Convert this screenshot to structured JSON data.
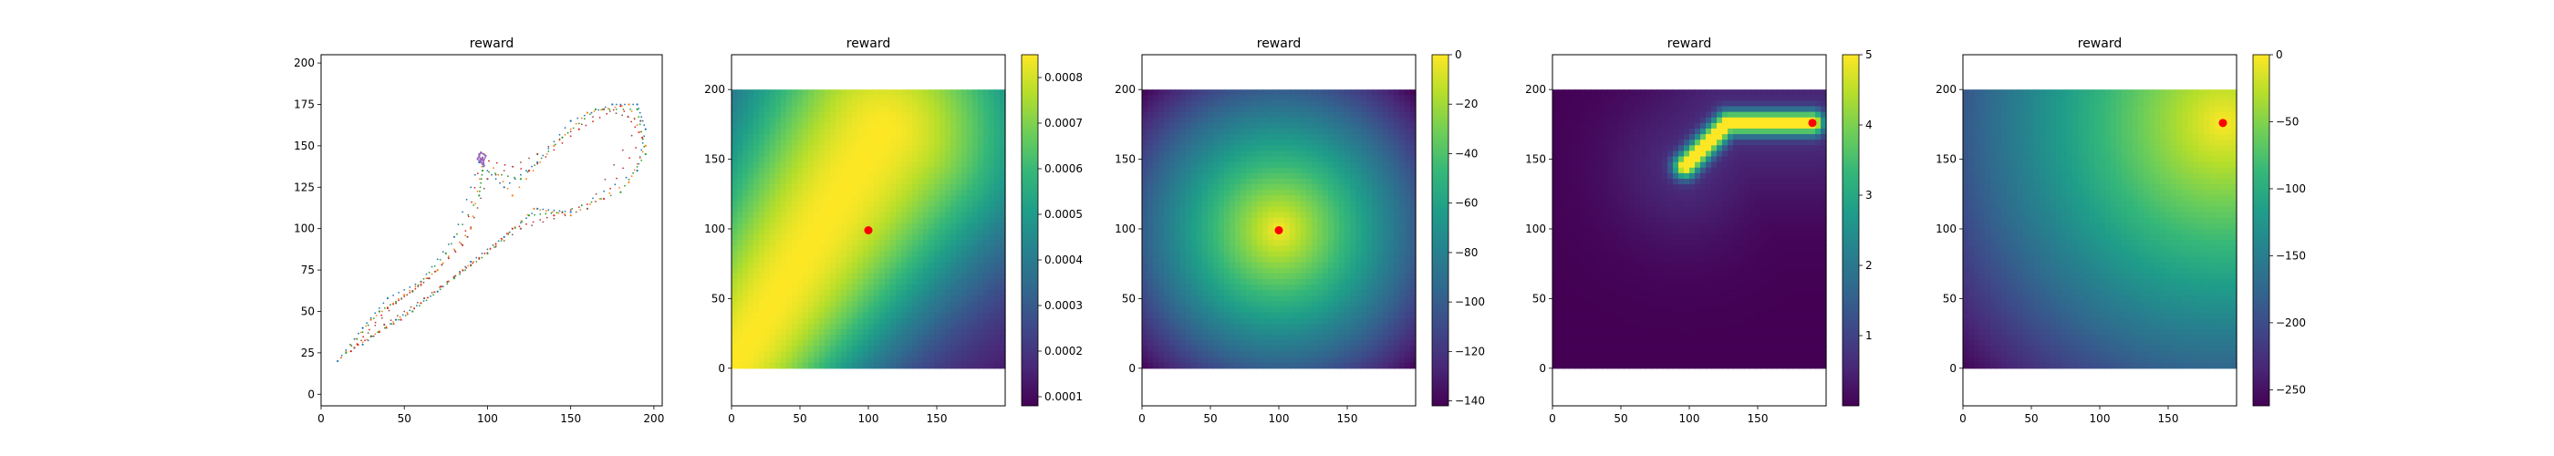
{
  "figure": {
    "background": "#ffffff"
  },
  "chart_data": [
    {
      "type": "scatter",
      "title": "reward",
      "xlim": [
        0,
        205
      ],
      "ylim": [
        -7,
        205
      ],
      "xticks": [
        0,
        50,
        100,
        150,
        200
      ],
      "yticks": [
        0,
        25,
        50,
        75,
        100,
        125,
        150,
        175,
        200
      ],
      "colorbar": null,
      "series": [
        {
          "color": "#1f77b4",
          "points": [
            [
              10,
              20
            ],
            [
              25,
              40
            ],
            [
              40,
              58
            ],
            [
              60,
              68
            ],
            [
              80,
              95
            ],
            [
              95,
              140
            ],
            [
              110,
              125
            ],
            [
              130,
              140
            ],
            [
              150,
              165
            ],
            [
              175,
              175
            ],
            [
              190,
              175
            ],
            [
              195,
              160
            ],
            [
              190,
              135
            ],
            [
              150,
              110
            ],
            [
              130,
              112
            ],
            [
              110,
              95
            ],
            [
              90,
              80
            ],
            [
              70,
              62
            ],
            [
              45,
              45
            ],
            [
              25,
              30
            ]
          ]
        },
        {
          "color": "#ff7f0e",
          "points": [
            [
              12,
              22
            ],
            [
              30,
              45
            ],
            [
              50,
              60
            ],
            [
              70,
              75
            ],
            [
              90,
              100
            ],
            [
              98,
              145
            ],
            [
              115,
              120
            ],
            [
              140,
              150
            ],
            [
              160,
              170
            ],
            [
              185,
              175
            ],
            [
              195,
              150
            ],
            [
              185,
              128
            ],
            [
              150,
              108
            ],
            [
              128,
              112
            ],
            [
              105,
              90
            ],
            [
              85,
              75
            ],
            [
              60,
              55
            ],
            [
              35,
              38
            ],
            [
              20,
              28
            ]
          ]
        },
        {
          "color": "#2ca02c",
          "points": [
            [
              15,
              25
            ],
            [
              35,
              50
            ],
            [
              55,
              62
            ],
            [
              75,
              85
            ],
            [
              95,
              120
            ],
            [
              97,
              135
            ],
            [
              120,
              130
            ],
            [
              145,
              155
            ],
            [
              165,
              172
            ],
            [
              190,
              172
            ],
            [
              195,
              145
            ],
            [
              180,
              122
            ],
            [
              145,
              110
            ],
            [
              125,
              108
            ],
            [
              100,
              85
            ],
            [
              80,
              70
            ],
            [
              55,
              50
            ],
            [
              30,
              35
            ]
          ]
        },
        {
          "color": "#d62728",
          "points": [
            [
              18,
              26
            ],
            [
              40,
              52
            ],
            [
              60,
              66
            ],
            [
              85,
              90
            ],
            [
              96,
              142
            ],
            [
              125,
              135
            ],
            [
              155,
              160
            ],
            [
              180,
              174
            ],
            [
              193,
              155
            ],
            [
              170,
              118
            ],
            [
              140,
              108
            ],
            [
              115,
              100
            ],
            [
              95,
              82
            ],
            [
              72,
              65
            ],
            [
              48,
              45
            ],
            [
              22,
              30
            ]
          ]
        },
        {
          "color": "#9467bd",
          "points": [
            [
              95,
              145
            ],
            [
              96,
              140
            ],
            [
              97,
              143
            ],
            [
              98,
              138
            ],
            [
              94,
              142
            ],
            [
              96,
              146
            ],
            [
              99,
              144
            ],
            [
              97,
              139
            ]
          ]
        },
        {
          "color": "#8c564b",
          "points": [
            [
              20,
              28
            ],
            [
              45,
              55
            ],
            [
              65,
              70
            ],
            [
              88,
              95
            ],
            [
              100,
              130
            ],
            [
              130,
              145
            ],
            [
              170,
              172
            ],
            [
              192,
              165
            ],
            [
              160,
              112
            ],
            [
              120,
              100
            ],
            [
              90,
              78
            ],
            [
              62,
              58
            ],
            [
              38,
              42
            ]
          ]
        }
      ]
    },
    {
      "type": "heatmap",
      "title": "reward",
      "kind": "corridor",
      "xlim": [
        0,
        200
      ],
      "ylim": [
        -27,
        225
      ],
      "xticks": [
        0,
        50,
        100,
        150
      ],
      "yticks": [
        0,
        50,
        100,
        150,
        200
      ],
      "marker": [
        100,
        99
      ],
      "marker_color": "#ff0000",
      "colorbar": {
        "min": 8e-05,
        "max": 0.00085,
        "ticks": [
          0.0001,
          0.0002,
          0.0003,
          0.0004,
          0.0005,
          0.0006,
          0.0007,
          0.0008
        ],
        "labels": [
          "0.0001",
          "0.0002",
          "0.0003",
          "0.0004",
          "0.0005",
          "0.0006",
          "0.0007",
          "0.0008"
        ]
      }
    },
    {
      "type": "heatmap",
      "title": "reward",
      "kind": "radial",
      "xlim": [
        0,
        200
      ],
      "ylim": [
        -27,
        225
      ],
      "xticks": [
        0,
        50,
        100,
        150
      ],
      "yticks": [
        0,
        50,
        100,
        150,
        200
      ],
      "marker": [
        100,
        99
      ],
      "marker_color": "#ff0000",
      "colorbar": {
        "min": -142,
        "max": 0,
        "ticks": [
          0,
          -20,
          -40,
          -60,
          -80,
          -100,
          -120,
          -140
        ],
        "labels": [
          "0",
          "−20",
          "−40",
          "−60",
          "−80",
          "−100",
          "−120",
          "−140"
        ]
      }
    },
    {
      "type": "heatmap",
      "title": "reward",
      "kind": "path",
      "xlim": [
        0,
        200
      ],
      "ylim": [
        -27,
        225
      ],
      "xticks": [
        0,
        50,
        100,
        150
      ],
      "yticks": [
        0,
        50,
        100,
        150,
        200
      ],
      "marker": [
        190,
        176
      ],
      "marker_color": "#ff0000",
      "colorbar": {
        "min": 0,
        "max": 5,
        "ticks": [
          1,
          2,
          3,
          4,
          5
        ],
        "labels": [
          "1",
          "2",
          "3",
          "4",
          "5"
        ]
      }
    },
    {
      "type": "heatmap",
      "title": "reward",
      "kind": "linear",
      "xlim": [
        0,
        200
      ],
      "ylim": [
        -27,
        225
      ],
      "xticks": [
        0,
        50,
        100,
        150
      ],
      "yticks": [
        0,
        50,
        100,
        150,
        200
      ],
      "marker": [
        190,
        176
      ],
      "marker_color": "#ff0000",
      "colorbar": {
        "min": -262,
        "max": 0,
        "ticks": [
          0,
          -50,
          -100,
          -150,
          -200,
          -250
        ],
        "labels": [
          "0",
          "−50",
          "−100",
          "−150",
          "−200",
          "−250"
        ]
      }
    }
  ]
}
